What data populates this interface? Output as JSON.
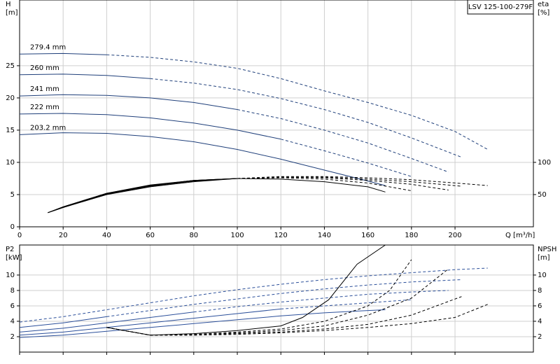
{
  "chart_data": [
    {
      "type": "line",
      "title": "LSV 125-100-279F",
      "ylabel": "H",
      "yunit": "[m]",
      "y2label": "eta",
      "y2unit": "[%]",
      "xlabel": "Q [m³/h]",
      "xlim": [
        0,
        236
      ],
      "xticks": [
        0,
        20,
        40,
        60,
        80,
        100,
        120,
        140,
        160,
        180,
        200
      ],
      "xtick_labels": true,
      "ylim": [
        0,
        35.2
      ],
      "yticks": [
        0,
        5,
        10,
        15,
        20,
        25
      ],
      "y2lim": [
        0,
        352
      ],
      "y2ticks": [
        50,
        100
      ],
      "grid": true,
      "series": [
        {
          "name": "279.4 mm",
          "color": "#1f3f7a",
          "dash_from": 40,
          "x": [
            0,
            20,
            40,
            60,
            80,
            100,
            120,
            140,
            160,
            180,
            200,
            215
          ],
          "values": [
            26.8,
            26.9,
            26.7,
            26.3,
            25.6,
            24.6,
            23.0,
            21.1,
            19.3,
            17.3,
            14.8,
            12.0
          ]
        },
        {
          "name": "260 mm",
          "color": "#1f3f7a",
          "dash_from": 60,
          "x": [
            0,
            20,
            40,
            60,
            80,
            100,
            120,
            140,
            160,
            180,
            203
          ],
          "values": [
            23.6,
            23.7,
            23.5,
            23.0,
            22.3,
            21.3,
            19.9,
            18.2,
            16.2,
            13.8,
            10.8
          ]
        },
        {
          "name": "241 mm",
          "color": "#1f3f7a",
          "dash_from": 100,
          "x": [
            0,
            20,
            40,
            60,
            80,
            100,
            120,
            140,
            160,
            180,
            197
          ],
          "values": [
            20.3,
            20.5,
            20.4,
            20.0,
            19.3,
            18.2,
            16.8,
            15.0,
            13.0,
            10.6,
            8.5
          ]
        },
        {
          "name": "222 mm",
          "color": "#1f3f7a",
          "dash_from": 120,
          "x": [
            0,
            20,
            40,
            60,
            80,
            100,
            120,
            140,
            160,
            180
          ],
          "values": [
            17.5,
            17.6,
            17.4,
            16.9,
            16.1,
            15.0,
            13.6,
            11.8,
            9.9,
            7.8
          ]
        },
        {
          "name": "203.2 mm",
          "color": "#1f3f7a",
          "dash_from": 168,
          "x": [
            0,
            20,
            40,
            60,
            80,
            100,
            120,
            140,
            160,
            168
          ],
          "values": [
            14.3,
            14.6,
            14.5,
            14.0,
            13.2,
            12.0,
            10.5,
            8.8,
            7.1,
            6.4
          ]
        },
        {
          "axis": "y2",
          "color": "#000000",
          "dash_from": 100,
          "x": [
            13,
            20,
            40,
            60,
            80,
            100,
            120,
            140,
            160,
            180,
            200,
            215
          ],
          "values": [
            22,
            30,
            50,
            62,
            70,
            75,
            78,
            78,
            76,
            73,
            68,
            64
          ]
        },
        {
          "axis": "y2",
          "color": "#000000",
          "dash_from": 100,
          "x": [
            13,
            20,
            40,
            60,
            80,
            100,
            120,
            140,
            160,
            180,
            203
          ],
          "values": [
            22,
            30,
            51,
            63,
            71,
            75,
            77,
            77,
            74,
            70,
            63
          ]
        },
        {
          "axis": "y2",
          "color": "#000000",
          "dash_from": 100,
          "x": [
            13,
            20,
            40,
            60,
            80,
            100,
            120,
            140,
            160,
            180,
            197
          ],
          "values": [
            22,
            30,
            51,
            64,
            72,
            75,
            77,
            76,
            72,
            66,
            57
          ]
        },
        {
          "axis": "y2",
          "color": "#000000",
          "dash_from": 100,
          "x": [
            13,
            20,
            40,
            60,
            80,
            100,
            120,
            140,
            160,
            180
          ],
          "values": [
            22,
            31,
            52,
            64,
            72,
            75,
            76,
            74,
            68,
            56
          ]
        },
        {
          "axis": "y2",
          "color": "#000000",
          "dash_from": 168,
          "x": [
            13,
            20,
            40,
            60,
            80,
            100,
            120,
            140,
            160,
            168
          ],
          "values": [
            22,
            31,
            52,
            65,
            72,
            75,
            74,
            70,
            62,
            54
          ]
        }
      ]
    },
    {
      "type": "line",
      "ylabel": "P2",
      "yunit": "[kW]",
      "y2label": "NPSH",
      "y2unit": "[m]",
      "xlim": [
        0,
        236
      ],
      "xticks": [
        0,
        20,
        40,
        60,
        80,
        100,
        120,
        140,
        160,
        180,
        200
      ],
      "xtick_labels": false,
      "ylim": [
        0,
        13.9
      ],
      "yticks": [
        2,
        4,
        6,
        8,
        10
      ],
      "y2lim": [
        0,
        13.9
      ],
      "y2ticks": [
        2,
        4,
        6,
        8,
        10
      ],
      "grid": true,
      "series": [
        {
          "color": "#2b4f9a",
          "dash_from": 0,
          "x": [
            0,
            20,
            40,
            60,
            80,
            100,
            120,
            140,
            160,
            180,
            200,
            215
          ],
          "values": [
            3.9,
            4.6,
            5.5,
            6.4,
            7.3,
            8.1,
            8.8,
            9.4,
            9.9,
            10.3,
            10.7,
            10.9
          ]
        },
        {
          "color": "#2b4f9a",
          "dash_from": 40,
          "x": [
            0,
            20,
            40,
            60,
            80,
            100,
            120,
            140,
            160,
            180,
            203
          ],
          "values": [
            3.2,
            3.8,
            4.6,
            5.4,
            6.2,
            6.9,
            7.6,
            8.2,
            8.7,
            9.1,
            9.4
          ]
        },
        {
          "color": "#2b4f9a",
          "dash_from": 80,
          "x": [
            0,
            20,
            40,
            60,
            80,
            100,
            120,
            140,
            160,
            180,
            197
          ],
          "values": [
            2.6,
            3.1,
            3.8,
            4.5,
            5.2,
            5.9,
            6.5,
            7.0,
            7.5,
            7.8,
            8.0
          ]
        },
        {
          "color": "#2b4f9a",
          "dash_from": 120,
          "x": [
            0,
            20,
            40,
            60,
            80,
            100,
            120,
            140,
            160,
            180
          ],
          "values": [
            2.2,
            2.6,
            3.2,
            3.8,
            4.4,
            5.0,
            5.6,
            6.0,
            6.4,
            6.8
          ]
        },
        {
          "color": "#2b4f9a",
          "dash_from": 168,
          "x": [
            0,
            20,
            40,
            60,
            80,
            100,
            120,
            140,
            160,
            168
          ],
          "values": [
            1.9,
            2.2,
            2.7,
            3.2,
            3.7,
            4.2,
            4.7,
            5.1,
            5.4,
            5.5
          ]
        },
        {
          "axis": "y2",
          "color": "#000000",
          "dash_from": 40,
          "x": [
            40,
            60,
            80,
            100,
            120,
            140,
            160,
            180,
            200,
            215
          ],
          "values": [
            3.2,
            2.2,
            2.2,
            2.3,
            2.5,
            2.8,
            3.2,
            3.7,
            4.5,
            6.2
          ]
        },
        {
          "axis": "y2",
          "color": "#000000",
          "dash_from": 40,
          "x": [
            40,
            60,
            80,
            100,
            120,
            140,
            160,
            180,
            203
          ],
          "values": [
            3.2,
            2.2,
            2.2,
            2.4,
            2.6,
            3.0,
            3.6,
            4.8,
            7.2
          ]
        },
        {
          "axis": "y2",
          "color": "#000000",
          "dash_from": 40,
          "x": [
            40,
            60,
            80,
            100,
            120,
            140,
            160,
            180,
            197
          ],
          "values": [
            3.2,
            2.2,
            2.3,
            2.5,
            2.8,
            3.4,
            4.8,
            7.0,
            10.8
          ]
        },
        {
          "axis": "y2",
          "color": "#000000",
          "dash_from": 40,
          "x": [
            40,
            60,
            80,
            100,
            120,
            140,
            160,
            170,
            180
          ],
          "values": [
            3.2,
            2.2,
            2.3,
            2.6,
            3.0,
            4.0,
            6.0,
            8.0,
            12.0
          ]
        },
        {
          "axis": "y2",
          "color": "#000000",
          "dash_from": 168,
          "x": [
            40,
            60,
            80,
            100,
            120,
            130,
            142,
            155,
            168
          ],
          "values": [
            3.2,
            2.2,
            2.4,
            2.8,
            3.4,
            4.5,
            6.8,
            11.4,
            13.9
          ]
        }
      ]
    }
  ]
}
